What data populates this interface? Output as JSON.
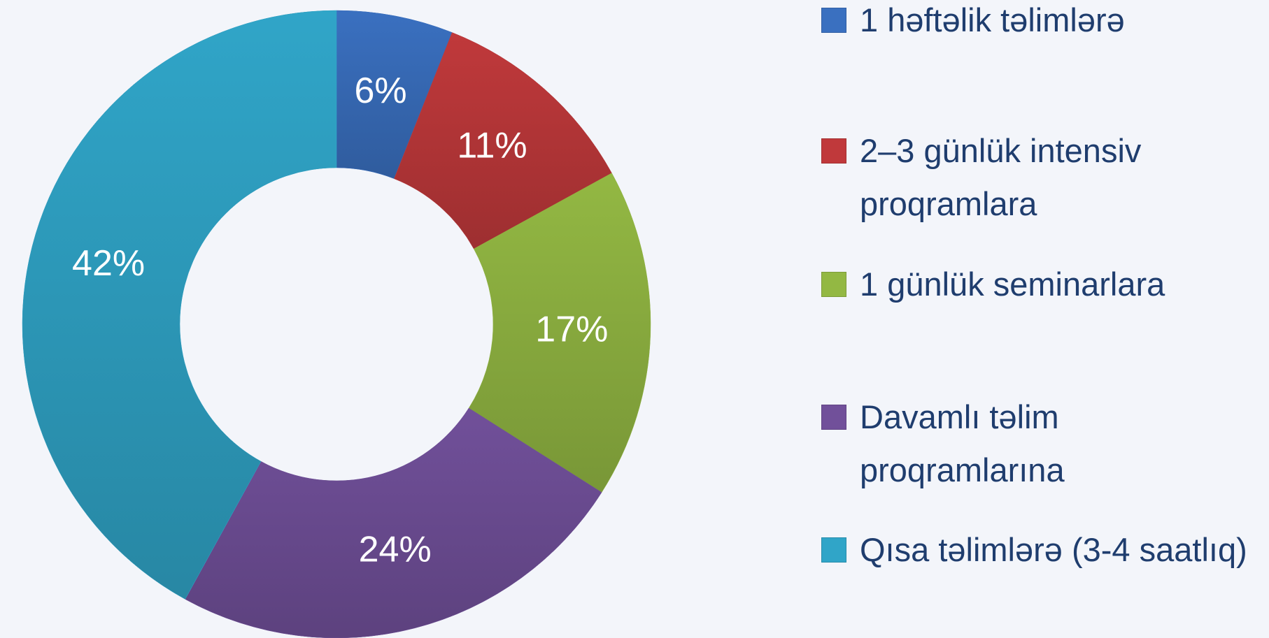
{
  "chart_data": {
    "type": "donut",
    "categories": [
      "1 həftəlik təlimlərə",
      "2–3 günlük intensiv proqramlara",
      "1 günlük seminarlara",
      "Davamlı təlim proqramlarına",
      "Qısa təlimlərə (3-4 saatlıq)"
    ],
    "values": [
      6,
      11,
      17,
      24,
      42
    ],
    "value_labels": [
      "6%",
      "11%",
      "17%",
      "24%",
      "42%"
    ],
    "colors": [
      "#3a70c0",
      "#c0393b",
      "#93b843",
      "#71509a",
      "#30a5c8"
    ],
    "legend": "right"
  }
}
